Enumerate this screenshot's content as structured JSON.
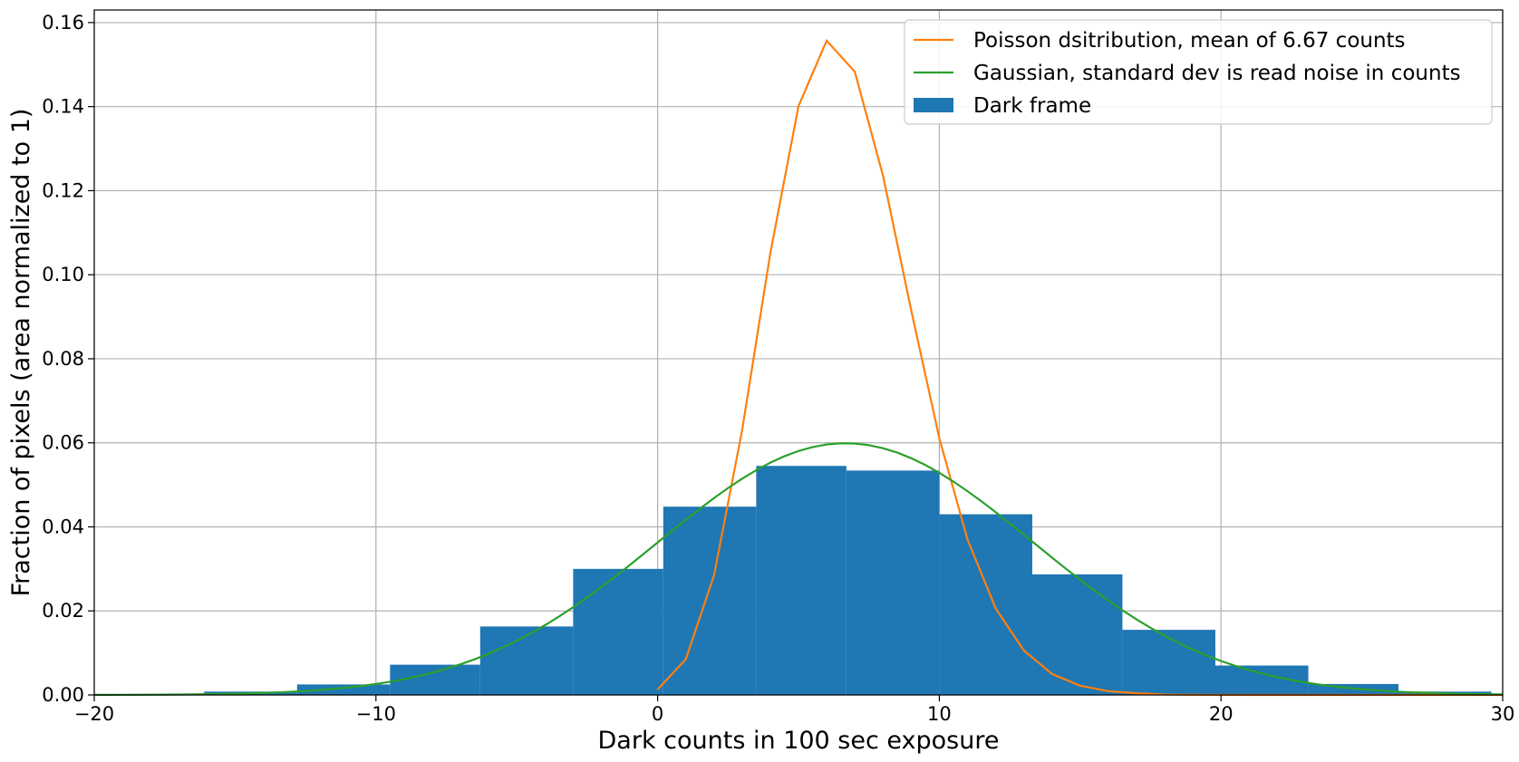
{
  "chart_data": {
    "type": "histogram",
    "title": "",
    "xlabel": "Dark counts in 100 sec exposure",
    "ylabel": "Fraction of pixels (area normalized to 1)",
    "xlim": [
      -20,
      30
    ],
    "ylim": [
      0,
      0.163
    ],
    "xticks": [
      -20,
      -10,
      0,
      10,
      20,
      30
    ],
    "xtick_labels": [
      "−20",
      "−10",
      "0",
      "10",
      "20",
      "30"
    ],
    "yticks": [
      0,
      0.02,
      0.04,
      0.06,
      0.08,
      0.1,
      0.12,
      0.14,
      0.16
    ],
    "ytick_labels": [
      "0.00",
      "0.02",
      "0.04",
      "0.06",
      "0.08",
      "0.10",
      "0.12",
      "0.14",
      "0.16"
    ],
    "grid": true,
    "legend_position": "top-right",
    "series": [
      {
        "name": "Poisson dsitribution, mean of  6.67 counts",
        "kind": "line",
        "color": "#ff7f0e",
        "x": [
          0,
          1,
          2,
          3,
          4,
          5,
          6,
          7,
          8,
          9,
          10,
          11,
          12,
          13,
          14,
          15,
          16,
          17,
          18,
          19,
          20,
          21,
          22,
          23,
          24,
          25,
          26,
          27,
          28,
          29,
          30
        ],
        "y": [
          0.0013,
          0.0085,
          0.0284,
          0.063,
          0.1051,
          0.1401,
          0.1557,
          0.1483,
          0.1236,
          0.0916,
          0.0611,
          0.037,
          0.0206,
          0.0106,
          0.005,
          0.0022,
          0.0009,
          0.0004,
          0.0001,
          4e-05,
          1e-05,
          0,
          0,
          0,
          0,
          0,
          0,
          0,
          0,
          0,
          0
        ]
      },
      {
        "name": "Gaussian, standard dev is read noise in counts",
        "kind": "line",
        "color": "#2ca02c",
        "mean": 6.67,
        "std": 6.66
      },
      {
        "name": "Dark frame",
        "kind": "bar",
        "color": "#1f77b4",
        "bin_edges": [
          -16.1,
          -12.8,
          -9.5,
          -6.3,
          -3.0,
          0.2,
          3.5,
          6.7,
          10.0,
          13.3,
          16.5,
          19.8,
          23.1,
          26.3,
          29.6
        ],
        "values": [
          0.0008,
          0.0025,
          0.0072,
          0.0163,
          0.03,
          0.0448,
          0.0545,
          0.0534,
          0.043,
          0.0287,
          0.0155,
          0.007,
          0.0026,
          0.0008
        ]
      }
    ]
  }
}
